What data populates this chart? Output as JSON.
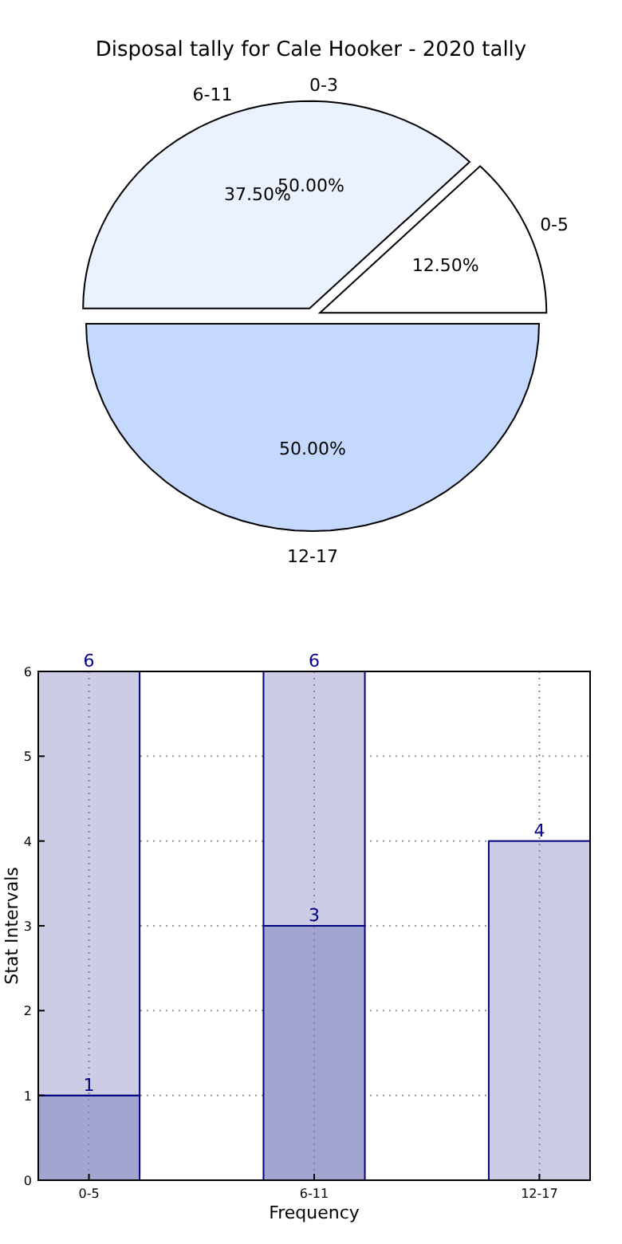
{
  "chart_data": [
    {
      "type": "pie",
      "title": "Disposal tally for Cale Hooker - 2020 tally",
      "categories": [
        "0-5",
        "6-11",
        "12-17"
      ],
      "values": [
        12.5,
        37.5,
        50
      ],
      "colors": [
        "#ffffff",
        "#eaf1ff",
        "#c5d9ff"
      ],
      "value_labels": [
        "12.50%",
        "37.50%",
        "50.00%"
      ],
      "annotations": [
        "0-3",
        "50.00%"
      ]
    },
    {
      "type": "bar",
      "categories": [
        "0-5",
        "6-11",
        "12-17"
      ],
      "xlabel": "Frequency",
      "ylabel": "Stat Intervals",
      "series": [
        {
          "color": "#a3a5d1",
          "values": [
            1,
            3,
            null
          ],
          "value_labels": [
            "1",
            "3",
            null
          ]
        },
        {
          "color": "#ccccE4",
          "values": [
            5,
            3,
            4
          ]
        }
      ],
      "stacked": true,
      "totals": [
        "6",
        "6",
        "4"
      ],
      "ylim": [
        0,
        6
      ],
      "yticks": [
        0,
        1,
        2,
        3,
        4,
        5,
        6
      ],
      "grid": true
    }
  ]
}
